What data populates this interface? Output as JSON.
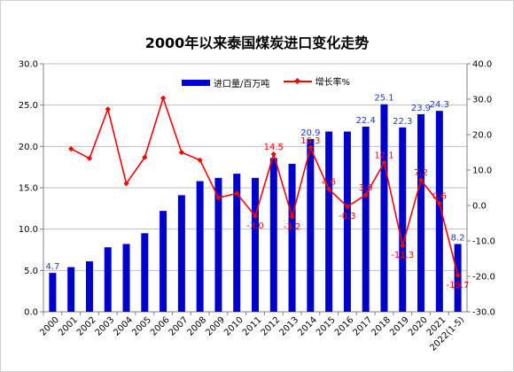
{
  "colors": {
    "bar": "#0000cc",
    "line": "#ff0000",
    "grid": "#bfbfbf",
    "bar_label": "#1f3bb3",
    "line_label": "#ff0000"
  },
  "chart_data": {
    "type": "bar",
    "title": "2000年以来泰国煤炭进口变化走势",
    "categories": [
      "2000",
      "2001",
      "2002",
      "2003",
      "2004",
      "2005",
      "2006",
      "2007",
      "2008",
      "2009",
      "2010",
      "2011",
      "2012",
      "2013",
      "2014",
      "2015",
      "2016",
      "2017",
      "2018",
      "2019",
      "2020",
      "2021",
      "2022(1-5)"
    ],
    "series": [
      {
        "name": "进口量/百万吨",
        "type": "bar",
        "axis": "left",
        "values": [
          4.7,
          5.4,
          6.1,
          7.8,
          8.2,
          9.5,
          12.2,
          14.1,
          15.8,
          16.2,
          16.7,
          16.2,
          18.6,
          17.9,
          20.9,
          21.8,
          21.8,
          22.4,
          25.1,
          22.3,
          23.9,
          24.3,
          8.2
        ],
        "labels": [
          "4.7",
          "",
          "",
          "",
          "",
          "",
          "",
          "",
          "",
          "",
          "",
          "",
          "",
          "",
          "20.9",
          "",
          "",
          "22.4",
          "25.1",
          "22.3",
          "23.9",
          "24.3",
          "8.2"
        ]
      },
      {
        "name": "增长率%",
        "type": "line",
        "axis": "right",
        "values": [
          null,
          16.0,
          13.3,
          27.2,
          6.2,
          13.6,
          30.3,
          15.0,
          12.8,
          2.2,
          3.4,
          -3.0,
          14.5,
          -3.2,
          16.3,
          4.6,
          -0.3,
          3.0,
          12.1,
          -11.3,
          7.2,
          0.6,
          -19.7
        ],
        "labels": [
          "",
          "",
          "",
          "",
          "",
          "",
          "",
          "",
          "",
          "",
          "",
          "-3.0",
          "14.5",
          "-3.2",
          "16.3",
          "4.6",
          "-0.3",
          "3.0",
          "12.1",
          "-11.3",
          "7.2",
          "0.6",
          "-19.7"
        ]
      }
    ],
    "ylim_left": [
      0,
      30
    ],
    "ylim_right": [
      -30,
      40
    ],
    "left_ticks": [
      "0.0",
      "5.0",
      "10.0",
      "15.0",
      "20.0",
      "25.0",
      "30.0"
    ],
    "right_ticks": [
      "-30.0",
      "-20.0",
      "-10.0",
      "0.0",
      "10.0",
      "20.0",
      "30.0",
      "40.0"
    ],
    "grid": true,
    "legend_position": "top"
  }
}
